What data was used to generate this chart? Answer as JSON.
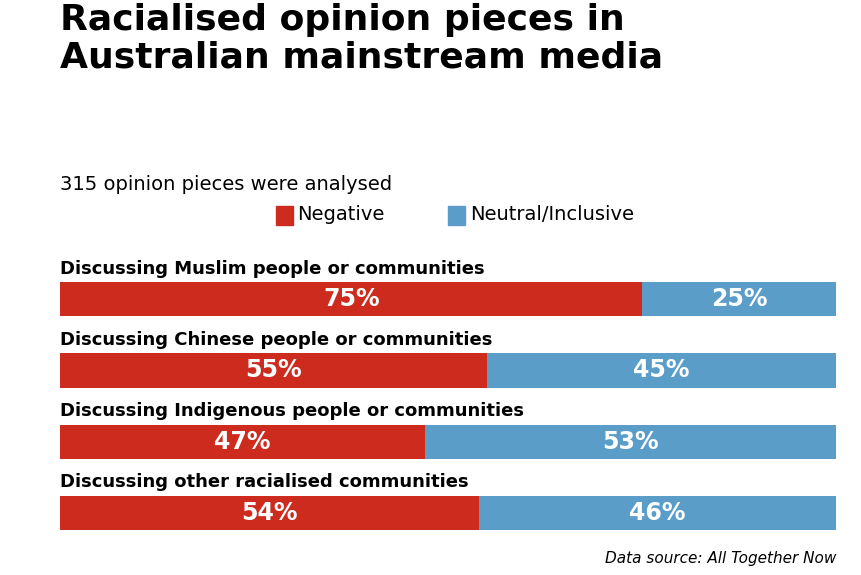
{
  "title": "Racialised opinion pieces in\nAustralian mainstream media",
  "subtitle": "315 opinion pieces were analysed",
  "datasource": "Data source: All Together Now",
  "categories": [
    "Discussing Muslim people or communities",
    "Discussing Chinese people or communities",
    "Discussing Indigenous people or communities",
    "Discussing other racialised communities"
  ],
  "negative": [
    75,
    55,
    47,
    54
  ],
  "neutral": [
    25,
    45,
    53,
    46
  ],
  "negative_color": "#cc2b1d",
  "neutral_color": "#5b9dc9",
  "label_color": "#ffffff",
  "background_color": "#ffffff",
  "title_fontsize": 26,
  "subtitle_fontsize": 14,
  "category_fontsize": 13,
  "bar_label_fontsize": 17,
  "legend_fontsize": 14,
  "bar_height": 0.48,
  "legend_neg_label": "Negative",
  "legend_neu_label": "Neutral/Inclusive",
  "datasource_fontsize": 11
}
